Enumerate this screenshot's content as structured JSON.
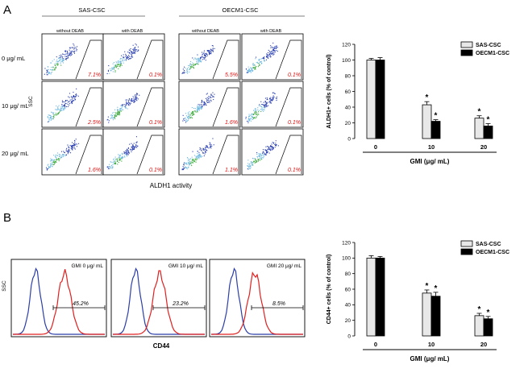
{
  "panel_a": {
    "letter": "A",
    "groups": [
      "SAS-CSC",
      "OECM1-CSC"
    ],
    "columns": [
      "without DEAB",
      "with DEAB",
      "without DEAB",
      "with DEAB"
    ],
    "rows": [
      "0 μg/ mL",
      "10 μg/ mL",
      "20 μg/ mL"
    ],
    "percentages": [
      [
        "7.1%",
        "0.1%",
        "5.5%",
        "0.1%"
      ],
      [
        "2.5%",
        "0.1%",
        "1.6%",
        "0.1%"
      ],
      [
        "1.6%",
        "0.1%",
        "1.1%",
        "0.1%"
      ]
    ],
    "y_axis_label": "SSC",
    "x_axis_label": "ALDH1 activity"
  },
  "panel_b": {
    "letter": "B",
    "histograms": [
      {
        "label": "GMI 0 μg/ mL",
        "pct": "45.2%"
      },
      {
        "label": "GMI 10 μg/ mL",
        "pct": "23.2%"
      },
      {
        "label": "GMI 20 μg/ mL",
        "pct": "8.5%"
      }
    ],
    "y_axis_label": "SSC",
    "x_axis_label": "CD44"
  },
  "chart_data": [
    {
      "type": "bar",
      "title": "",
      "xlabel": "GMI (μg/ mL)",
      "ylabel": "ALDH1+ cells (% of control)",
      "ylim": [
        0,
        120
      ],
      "yticks": [
        "0",
        "20",
        "40",
        "60",
        "80",
        "100",
        "120"
      ],
      "categories": [
        "0",
        "10",
        "20"
      ],
      "series": [
        {
          "name": "SAS-CSC",
          "values": [
            100,
            43,
            26
          ],
          "errors": [
            2,
            4,
            3
          ],
          "color": "#e8e8e8"
        },
        {
          "name": "OECM1-CSC",
          "values": [
            100,
            22,
            16
          ],
          "errors": [
            3,
            2,
            3
          ],
          "color": "#000000"
        }
      ],
      "significance": [
        [
          "",
          "*",
          "*"
        ],
        [
          "",
          "*",
          "*"
        ]
      ],
      "significance_marker": "*"
    },
    {
      "type": "bar",
      "title": "",
      "xlabel": "GMI (μg/ mL)",
      "ylabel": "CD44+ cells (% of control)",
      "ylim": [
        0,
        120
      ],
      "yticks": [
        "0",
        "20",
        "40",
        "60",
        "80",
        "100",
        "120"
      ],
      "categories": [
        "0",
        "10",
        "20"
      ],
      "series": [
        {
          "name": "SAS-CSC",
          "values": [
            100,
            55,
            26
          ],
          "errors": [
            3,
            4,
            3
          ],
          "color": "#e8e8e8"
        },
        {
          "name": "OECM1-CSC",
          "values": [
            100,
            51,
            22
          ],
          "errors": [
            2,
            5,
            3
          ],
          "color": "#000000"
        }
      ],
      "significance": [
        [
          "",
          "*",
          "*"
        ],
        [
          "",
          "*",
          "*"
        ]
      ],
      "significance_marker": "*"
    }
  ]
}
